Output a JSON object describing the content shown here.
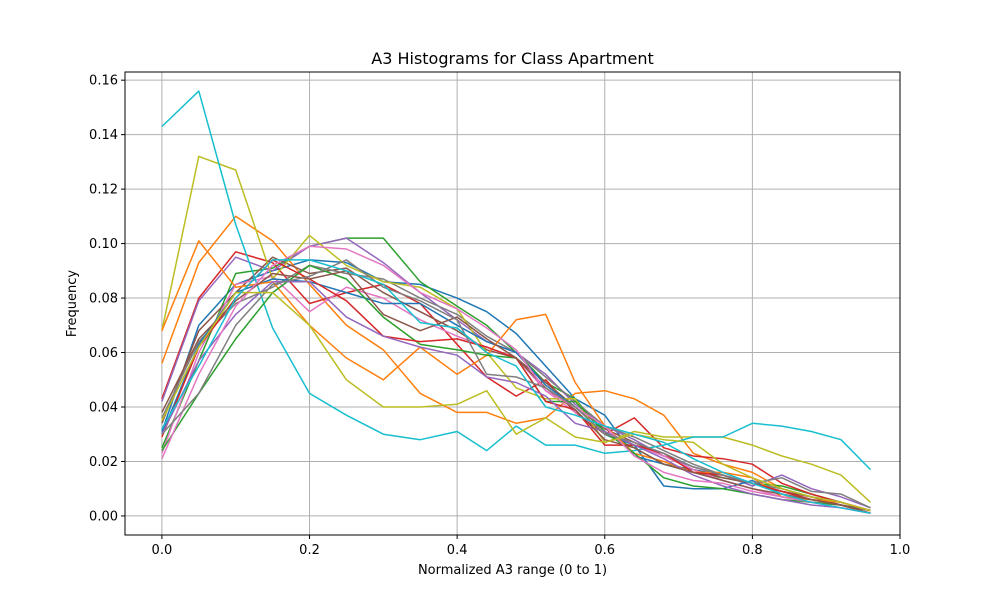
{
  "chart_data": {
    "type": "line",
    "title": "A3 Histograms for Class Apartment",
    "xlabel": "Normalized A3 range (0 to 1)",
    "ylabel": "Frequency",
    "xlim": [
      -0.05,
      1.0
    ],
    "ylim": [
      -0.007,
      0.163
    ],
    "xticks": [
      0.0,
      0.2,
      0.4,
      0.6,
      0.8,
      1.0
    ],
    "xtick_labels": [
      "0.0",
      "0.2",
      "0.4",
      "0.6",
      "0.8",
      "1.0"
    ],
    "yticks": [
      0.0,
      0.02,
      0.04,
      0.06,
      0.08,
      0.1,
      0.12,
      0.14,
      0.16
    ],
    "ytick_labels": [
      "0.00",
      "0.02",
      "0.04",
      "0.06",
      "0.08",
      "0.10",
      "0.12",
      "0.14",
      "0.16"
    ],
    "grid": true,
    "x": [
      0.0,
      0.05,
      0.1,
      0.15,
      0.2,
      0.25,
      0.3,
      0.35,
      0.4,
      0.44,
      0.48,
      0.52,
      0.56,
      0.6,
      0.64,
      0.68,
      0.72,
      0.76,
      0.8,
      0.84,
      0.88,
      0.92,
      0.96
    ],
    "series": [
      {
        "color": "#1f77b4",
        "values": [
          0.031,
          0.07,
          0.085,
          0.09,
          0.094,
          0.093,
          0.086,
          0.085,
          0.08,
          0.075,
          0.067,
          0.055,
          0.043,
          0.037,
          0.022,
          0.019,
          0.017,
          0.015,
          0.012,
          0.009,
          0.006,
          0.004,
          0.002
        ]
      },
      {
        "color": "#ff7f0e",
        "values": [
          0.056,
          0.093,
          0.11,
          0.101,
          0.085,
          0.07,
          0.061,
          0.045,
          0.038,
          0.038,
          0.034,
          0.036,
          0.045,
          0.046,
          0.043,
          0.037,
          0.023,
          0.019,
          0.016,
          0.01,
          0.007,
          0.005,
          0.002
        ]
      },
      {
        "color": "#2ca02c",
        "values": [
          0.025,
          0.057,
          0.089,
          0.091,
          0.099,
          0.102,
          0.102,
          0.086,
          0.077,
          0.07,
          0.06,
          0.049,
          0.043,
          0.03,
          0.025,
          0.019,
          0.016,
          0.014,
          0.012,
          0.011,
          0.008,
          0.005,
          0.002
        ]
      },
      {
        "color": "#d62728",
        "values": [
          0.043,
          0.08,
          0.097,
          0.093,
          0.078,
          0.082,
          0.085,
          0.078,
          0.063,
          0.051,
          0.044,
          0.05,
          0.038,
          0.03,
          0.036,
          0.025,
          0.022,
          0.021,
          0.019,
          0.012,
          0.008,
          0.005,
          0.002
        ]
      },
      {
        "color": "#9467bd",
        "values": [
          0.042,
          0.079,
          0.095,
          0.09,
          0.099,
          0.102,
          0.093,
          0.082,
          0.072,
          0.064,
          0.06,
          0.052,
          0.041,
          0.033,
          0.028,
          0.022,
          0.018,
          0.015,
          0.011,
          0.015,
          0.01,
          0.007,
          0.003
        ]
      },
      {
        "color": "#8c564b",
        "values": [
          0.034,
          0.068,
          0.082,
          0.095,
          0.089,
          0.091,
          0.082,
          0.075,
          0.068,
          0.061,
          0.058,
          0.049,
          0.04,
          0.032,
          0.027,
          0.022,
          0.017,
          0.014,
          0.012,
          0.009,
          0.007,
          0.004,
          0.002
        ]
      },
      {
        "color": "#e377c2",
        "values": [
          0.023,
          0.06,
          0.085,
          0.088,
          0.075,
          0.084,
          0.08,
          0.072,
          0.066,
          0.062,
          0.058,
          0.046,
          0.038,
          0.031,
          0.026,
          0.022,
          0.017,
          0.013,
          0.01,
          0.007,
          0.005,
          0.004,
          0.001
        ]
      },
      {
        "color": "#7f7f7f",
        "values": [
          0.036,
          0.064,
          0.078,
          0.084,
          0.092,
          0.089,
          0.087,
          0.08,
          0.074,
          0.066,
          0.06,
          0.051,
          0.042,
          0.033,
          0.029,
          0.024,
          0.019,
          0.015,
          0.012,
          0.01,
          0.007,
          0.005,
          0.002
        ]
      },
      {
        "color": "#bcbd22",
        "values": [
          0.068,
          0.132,
          0.127,
          0.087,
          0.103,
          0.092,
          0.086,
          0.084,
          0.076,
          0.06,
          0.047,
          0.043,
          0.043,
          0.027,
          0.031,
          0.029,
          0.029,
          0.029,
          0.026,
          0.022,
          0.019,
          0.015,
          0.005
        ]
      },
      {
        "color": "#17becf",
        "values": [
          0.143,
          0.156,
          0.107,
          0.069,
          0.045,
          0.037,
          0.03,
          0.028,
          0.031,
          0.024,
          0.033,
          0.026,
          0.026,
          0.023,
          0.024,
          0.026,
          0.029,
          0.029,
          0.034,
          0.033,
          0.031,
          0.028,
          0.017
        ]
      },
      {
        "color": "#1f77b4",
        "values": [
          0.03,
          0.063,
          0.082,
          0.087,
          0.086,
          0.082,
          0.078,
          0.078,
          0.07,
          0.064,
          0.06,
          0.048,
          0.04,
          0.03,
          0.026,
          0.011,
          0.01,
          0.01,
          0.013,
          0.008,
          0.005,
          0.004,
          0.001
        ]
      },
      {
        "color": "#ff7f0e",
        "values": [
          0.068,
          0.101,
          0.084,
          0.086,
          0.07,
          0.058,
          0.05,
          0.062,
          0.052,
          0.059,
          0.072,
          0.074,
          0.049,
          0.033,
          0.023,
          0.02,
          0.016,
          0.016,
          0.014,
          0.007,
          0.006,
          0.005,
          0.002
        ]
      },
      {
        "color": "#2ca02c",
        "values": [
          0.024,
          0.045,
          0.065,
          0.082,
          0.092,
          0.087,
          0.073,
          0.063,
          0.061,
          0.059,
          0.058,
          0.042,
          0.042,
          0.031,
          0.023,
          0.014,
          0.011,
          0.01,
          0.008,
          0.006,
          0.005,
          0.004,
          0.001
        ]
      },
      {
        "color": "#d62728",
        "values": [
          0.029,
          0.062,
          0.08,
          0.094,
          0.087,
          0.079,
          0.066,
          0.064,
          0.065,
          0.062,
          0.058,
          0.042,
          0.039,
          0.026,
          0.026,
          0.023,
          0.016,
          0.015,
          0.012,
          0.009,
          0.006,
          0.004,
          0.001
        ]
      },
      {
        "color": "#9467bd",
        "values": [
          0.03,
          0.057,
          0.074,
          0.086,
          0.086,
          0.073,
          0.066,
          0.062,
          0.059,
          0.051,
          0.049,
          0.044,
          0.034,
          0.031,
          0.026,
          0.021,
          0.015,
          0.011,
          0.008,
          0.006,
          0.004,
          0.003,
          0.001
        ]
      },
      {
        "color": "#8c564b",
        "values": [
          0.038,
          0.065,
          0.079,
          0.089,
          0.087,
          0.09,
          0.074,
          0.068,
          0.073,
          0.065,
          0.058,
          0.047,
          0.039,
          0.028,
          0.025,
          0.019,
          0.016,
          0.013,
          0.01,
          0.008,
          0.006,
          0.004,
          0.001
        ]
      },
      {
        "color": "#e377c2",
        "values": [
          0.021,
          0.052,
          0.077,
          0.092,
          0.099,
          0.098,
          0.092,
          0.082,
          0.076,
          0.069,
          0.061,
          0.046,
          0.04,
          0.033,
          0.022,
          0.016,
          0.013,
          0.012,
          0.009,
          0.007,
          0.005,
          0.003,
          0.001
        ]
      },
      {
        "color": "#7f7f7f",
        "values": [
          0.03,
          0.045,
          0.07,
          0.085,
          0.088,
          0.094,
          0.084,
          0.079,
          0.072,
          0.052,
          0.051,
          0.047,
          0.04,
          0.03,
          0.027,
          0.023,
          0.018,
          0.015,
          0.012,
          0.014,
          0.009,
          0.008,
          0.003
        ]
      },
      {
        "color": "#bcbd22",
        "values": [
          0.035,
          0.062,
          0.082,
          0.082,
          0.07,
          0.05,
          0.04,
          0.04,
          0.041,
          0.046,
          0.03,
          0.036,
          0.029,
          0.027,
          0.03,
          0.028,
          0.027,
          0.019,
          0.014,
          0.01,
          0.007,
          0.005,
          0.002
        ]
      },
      {
        "color": "#17becf",
        "values": [
          0.032,
          0.055,
          0.08,
          0.094,
          0.094,
          0.09,
          0.085,
          0.071,
          0.069,
          0.06,
          0.055,
          0.04,
          0.037,
          0.033,
          0.03,
          0.027,
          0.021,
          0.016,
          0.012,
          0.008,
          0.005,
          0.003,
          0.001
        ]
      }
    ]
  }
}
